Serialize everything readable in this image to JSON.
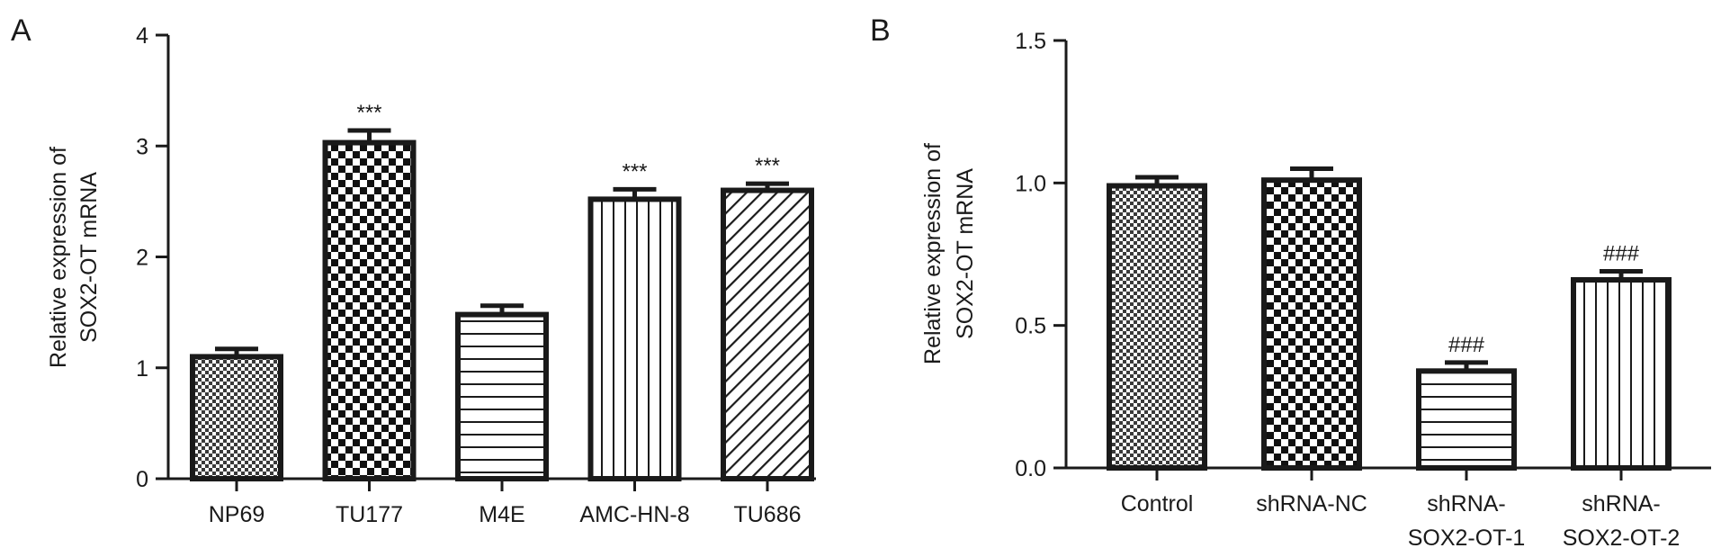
{
  "chart_data": [
    {
      "panel": "A",
      "type": "bar",
      "ylabel_lines": [
        "Relative expression of",
        "SOX2-OT mRNA"
      ],
      "ylim": [
        0,
        4
      ],
      "yticks": [
        "0",
        "1",
        "2",
        "3",
        "4"
      ],
      "grid": false,
      "categories": [
        [
          "NP69"
        ],
        [
          "TU177"
        ],
        [
          "M4E"
        ],
        [
          "AMC-HN-8"
        ],
        [
          "TU686"
        ]
      ],
      "values": [
        1.1,
        3.03,
        1.48,
        2.52,
        2.6
      ],
      "errors": [
        0.07,
        0.11,
        0.08,
        0.09,
        0.06
      ],
      "patterns": [
        "fine-check",
        "checker",
        "horizontal",
        "vertical",
        "diagonal"
      ],
      "annotations": [
        "",
        "***",
        "",
        "***",
        "***"
      ]
    },
    {
      "panel": "B",
      "type": "bar",
      "ylabel_lines": [
        "Relative expression of",
        "SOX2-OT mRNA"
      ],
      "ylim": [
        0,
        1.5
      ],
      "yticks": [
        "0.0",
        "0.5",
        "1.0",
        "1.5"
      ],
      "grid": false,
      "categories": [
        [
          "Control"
        ],
        [
          "shRNA-NC"
        ],
        [
          "shRNA-",
          "SOX2-OT-1"
        ],
        [
          "shRNA-",
          "SOX2-OT-2"
        ]
      ],
      "values": [
        0.99,
        1.01,
        0.34,
        0.66
      ],
      "errors": [
        0.03,
        0.04,
        0.03,
        0.03
      ],
      "patterns": [
        "fine-check",
        "checker",
        "horizontal",
        "vertical"
      ],
      "annotations": [
        "",
        "",
        "###",
        "###"
      ]
    }
  ]
}
